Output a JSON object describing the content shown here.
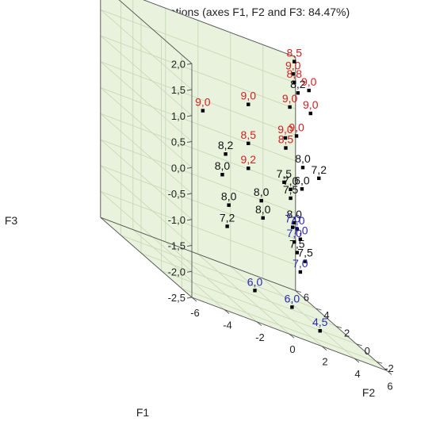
{
  "chart_data": {
    "type": "scatter",
    "title": "Observations (axes F1, F2 and F3: 84.47%)",
    "xlabel": "F1",
    "ylabel": "F2",
    "zlabel": "F3",
    "x_ticks": [
      "-6",
      "-4",
      "-2",
      "0",
      "2",
      "4",
      "6"
    ],
    "y_ticks": [
      "-2",
      "0",
      "2",
      "4",
      "6"
    ],
    "z_ticks": [
      "2,0",
      "1,5",
      "1,0",
      "0,5",
      "0,0",
      "-0,5",
      "-1,0",
      "-1,5",
      "-2,0",
      "-2,5"
    ],
    "xlim": [
      -6,
      6
    ],
    "ylim": [
      -3,
      6
    ],
    "zlim": [
      -2.5,
      2.0
    ],
    "grid": true,
    "colors": {
      "pane": "#e8f2dc",
      "grid": "#c4d6b4",
      "red": "#d42020",
      "black": "#111111",
      "blue": "#2a2ab4"
    },
    "points": [
      {
        "label": "9,0",
        "color": "red",
        "x": -0.9,
        "y": -0.4,
        "z": 1.37
      },
      {
        "label": "9,0",
        "color": "red",
        "x": -3.7,
        "y": -0.4,
        "z": 0.92
      },
      {
        "label": "8,5",
        "color": "red",
        "x": -0.9,
        "y": -0.4,
        "z": 0.62
      },
      {
        "label": "8,2",
        "color": "black",
        "x": -2.3,
        "y": -0.4,
        "z": 0.25
      },
      {
        "label": "9,2",
        "color": "red",
        "x": -0.9,
        "y": -0.4,
        "z": 0.14
      },
      {
        "label": "8,0",
        "color": "black",
        "x": -2.5,
        "y": -0.4,
        "z": -0.17
      },
      {
        "label": "8,0",
        "color": "black",
        "x": -0.1,
        "y": -0.4,
        "z": -0.39
      },
      {
        "label": "8,0",
        "color": "black",
        "x": -2.1,
        "y": -0.4,
        "z": -0.71
      },
      {
        "label": "8,0",
        "color": "black",
        "x": 0.0,
        "y": -0.4,
        "z": -0.71
      },
      {
        "label": "7,2",
        "color": "black",
        "x": -2.2,
        "y": -0.4,
        "z": -1.13
      },
      {
        "label": "7,5",
        "color": "black",
        "x": 1.3,
        "y": -0.4,
        "z": 0.13
      },
      {
        "label": "7,0",
        "color": "black",
        "x": 1.7,
        "y": -0.4,
        "z": 0.04
      },
      {
        "label": "6,0",
        "color": "black",
        "x": 2.4,
        "y": -0.4,
        "z": 0.13
      },
      {
        "label": "7,5",
        "color": "black",
        "x": 1.7,
        "y": -0.4,
        "z": -0.13
      },
      {
        "label": "7,0",
        "color": "blue",
        "x": 2.1,
        "y": -0.4,
        "z": -0.68
      },
      {
        "label": "7,0",
        "color": "blue",
        "x": 2.3,
        "y": -0.4,
        "z": -0.85
      },
      {
        "label": "7,5",
        "color": "black",
        "x": 2.1,
        "y": -0.4,
        "z": -1.13
      },
      {
        "label": "7,5",
        "color": "black",
        "x": 2.6,
        "y": -0.4,
        "z": -1.24
      },
      {
        "label": "7,0",
        "color": "blue",
        "x": 2.3,
        "y": -0.4,
        "z": -1.48
      },
      {
        "label": "9,0",
        "color": "red",
        "x": 4.6,
        "y": 4.0,
        "z": 1.85
      },
      {
        "label": "8,5",
        "color": "red",
        "x": 5.3,
        "y": 5.0,
        "z": 2.0
      },
      {
        "label": "8,2",
        "color": "black",
        "x": 4.9,
        "y": 4.0,
        "z": 1.52
      },
      {
        "label": "8,8",
        "color": "red",
        "x": 5.3,
        "y": 5.0,
        "z": 1.6
      },
      {
        "label": "9,0",
        "color": "red",
        "x": 6.2,
        "y": 5.0,
        "z": 1.55
      },
      {
        "label": "9,0",
        "color": "red",
        "x": 4.4,
        "y": 4.0,
        "z": 1.19
      },
      {
        "label": "9,0",
        "color": "red",
        "x": 6.3,
        "y": 5.0,
        "z": 1.12
      },
      {
        "label": "9,0",
        "color": "red",
        "x": 3.5,
        "y": 3.0,
        "z": 0.66
      },
      {
        "label": "8,5",
        "color": "red",
        "x": 3.4,
        "y": 2.8,
        "z": 0.49
      },
      {
        "label": "9,0",
        "color": "red",
        "x": 4.5,
        "y": 3.5,
        "z": 0.73
      },
      {
        "label": "8,0",
        "color": "black",
        "x": 5.2,
        "y": 4.0,
        "z": 0.12
      },
      {
        "label": "7,2",
        "color": "black",
        "x": 6.5,
        "y": 4.5,
        "z": -0.02
      },
      {
        "label": "8,0",
        "color": "black",
        "x": 3.3,
        "y": 1.8,
        "z": -0.79
      },
      {
        "label": "7,0",
        "color": "blue",
        "x": 3.2,
        "y": 1.8,
        "z": -0.89
      },
      {
        "label": "7,0",
        "color": "blue",
        "x": 3.3,
        "y": 1.8,
        "z": -1.16
      },
      {
        "label": "6,0",
        "color": "blue",
        "x": 1.0,
        "y": 2.0,
        "z": -2.4
      },
      {
        "label": "6,0",
        "color": "blue",
        "x": 3.6,
        "y": 2.5,
        "z": -2.5
      },
      {
        "label": "4,5",
        "color": "blue",
        "x": 3.7,
        "y": -0.1,
        "z": -2.5
      }
    ]
  }
}
